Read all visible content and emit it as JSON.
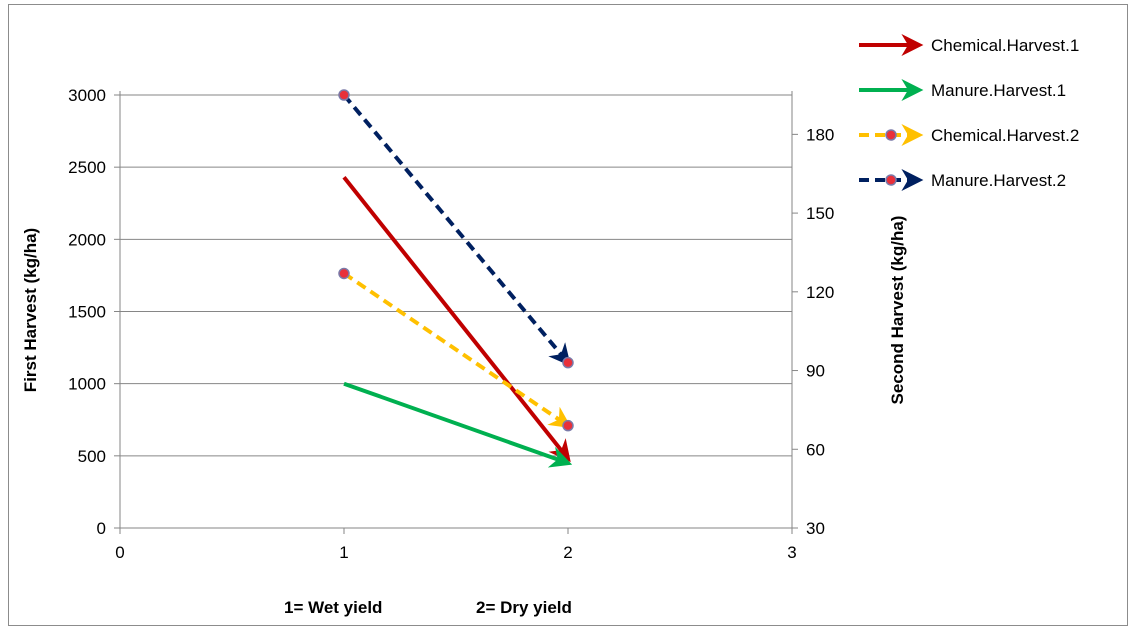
{
  "chart_data": {
    "type": "line",
    "title": "",
    "xlabel_parts": [
      "1= Wet yield",
      "2= Dry yield"
    ],
    "ylabel": "First Harvest (kg/ha)",
    "y2label": "Second Harvest (kg/ha)",
    "xlim": [
      0,
      3
    ],
    "x_ticks": [
      "0",
      "1",
      "2",
      "3"
    ],
    "ylim": [
      0,
      3000
    ],
    "y_ticks": [
      "0",
      "500",
      "1000",
      "1500",
      "2000",
      "2500",
      "3000"
    ],
    "y2lim": [
      30,
      195
    ],
    "y2_ticks": [
      "30",
      "60",
      "90",
      "120",
      "150",
      "180"
    ],
    "grid": "horizontal",
    "legend_position": "right",
    "series": [
      {
        "name": "Chemical.Harvest.1",
        "axis": "left",
        "color": "#c00000",
        "style": "solid",
        "markers": false,
        "arrow": true,
        "x": [
          1,
          2
        ],
        "y": [
          2430,
          480
        ]
      },
      {
        "name": "Manure.Harvest.1",
        "axis": "left",
        "color": "#00b050",
        "style": "solid",
        "markers": false,
        "arrow": true,
        "x": [
          1,
          2
        ],
        "y": [
          1000,
          450
        ]
      },
      {
        "name": "Chemical.Harvest.2",
        "axis": "right",
        "color": "#ffc000",
        "style": "dashed",
        "markers": true,
        "arrow": true,
        "x": [
          1,
          2
        ],
        "y": [
          127,
          69
        ]
      },
      {
        "name": "Manure.Harvest.2",
        "axis": "right",
        "color": "#002060",
        "style": "dashed",
        "markers": true,
        "arrow": true,
        "x": [
          1,
          2
        ],
        "y": [
          195,
          93
        ]
      }
    ]
  }
}
